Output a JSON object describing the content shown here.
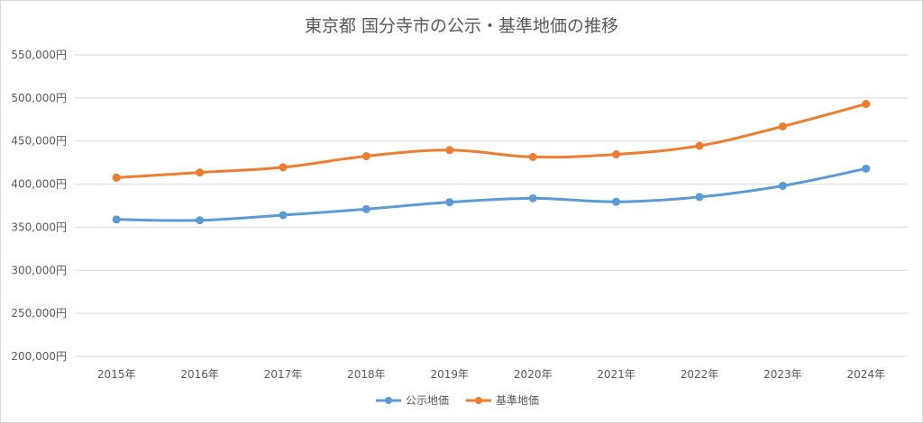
{
  "chart_data": {
    "type": "line",
    "title": "東京都 国分寺市の公示・基準地価の推移",
    "xlabel": "",
    "ylabel": "",
    "categories": [
      "2015年",
      "2016年",
      "2017年",
      "2018年",
      "2019年",
      "2020年",
      "2021年",
      "2022年",
      "2023年",
      "2024年"
    ],
    "series": [
      {
        "name": "公示地価",
        "color": "#5b9bd5",
        "values": [
          359000,
          358000,
          364000,
          371000,
          379000,
          383500,
          379500,
          385000,
          398000,
          418000
        ]
      },
      {
        "name": "基準地価",
        "color": "#ed7d31",
        "values": [
          407500,
          413500,
          419500,
          432500,
          439500,
          431500,
          434500,
          444500,
          467000,
          493000
        ]
      }
    ],
    "ylim": [
      200000,
      550000
    ],
    "y_ticks": [
      200000,
      250000,
      300000,
      350000,
      400000,
      450000,
      500000,
      550000
    ],
    "y_tick_labels": [
      "200,000円",
      "250,000円",
      "300,000円",
      "350,000円",
      "400,000円",
      "450,000円",
      "500,000円",
      "550,000円"
    ],
    "grid": true,
    "legend_position": "bottom"
  }
}
